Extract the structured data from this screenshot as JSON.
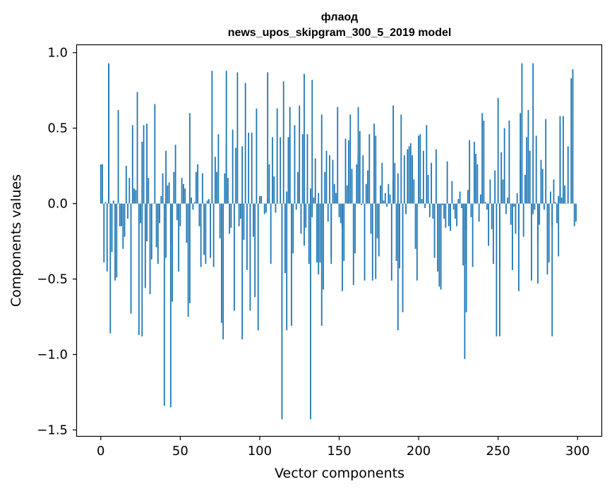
{
  "chart_data": {
    "type": "bar",
    "title": "флаод",
    "subtitle": "news_upos_skipgram_300_5_2019 model",
    "xlabel": "Vector components",
    "ylabel": "Components values",
    "xlim": [
      -15,
      315
    ],
    "ylim": [
      -1.54,
      1.05
    ],
    "xticks": [
      0,
      50,
      100,
      150,
      200,
      250,
      300
    ],
    "xtick_labels": [
      "0",
      "50",
      "100",
      "150",
      "200",
      "250",
      "300"
    ],
    "yticks": [
      -1.5,
      -1.0,
      -0.5,
      0.0,
      0.5,
      1.0
    ],
    "ytick_labels": [
      "−1.5",
      "−1.0",
      "−0.5",
      "0.0",
      "0.5",
      "1.0"
    ],
    "bar_color": "#1f77b4",
    "grid": false,
    "values": [
      0.26,
      0.26,
      -0.39,
      0.01,
      -0.45,
      0.92,
      -0.86,
      -0.32,
      0.02,
      -0.51,
      -0.49,
      0.62,
      -0.15,
      -0.15,
      -0.3,
      -0.22,
      0.25,
      -0.1,
      0.17,
      -0.73,
      0.52,
      0.1,
      0.09,
      0.74,
      -0.87,
      -0.13,
      0.41,
      0.52,
      -0.56,
      -0.25,
      0.17,
      -0.6,
      -0.37,
      0.0,
      0.66,
      -0.29,
      -0.4,
      -0.13,
      0.05,
      0.2,
      -1.34,
      0.35,
      0.12,
      0.14,
      -0.26,
      -0.65,
      0.21,
      0.39,
      -0.11,
      -0.45,
      -0.15,
      0.17,
      0.13,
      0.1,
      -0.26,
      -0.75,
      0.6,
      0.04,
      -0.04,
      0.01,
      0.21,
      0.26,
      -0.15,
      -0.42,
      0.2,
      -0.34,
      -0.4,
      0.02,
      0.03,
      -0.36,
      0.88,
      -0.42,
      0.31,
      0.21,
      0.46,
      -0.23,
      -0.79,
      -0.9,
      0.2,
      0.39,
      0.17,
      -0.2,
      -0.16,
      0.49,
      -0.71,
      0.37,
      0.87,
      -0.15,
      -0.1,
      0.38,
      -0.24,
      0.8,
      -0.44,
      0.47,
      -0.71,
      0.47,
      -0.22,
      -0.62,
      0.63,
      -0.84,
      0.05,
      0.05,
      0.0,
      -0.07,
      -0.06,
      0.03,
      0.26,
      -0.4,
      0.44,
      0.18,
      -0.06,
      0.63,
      0.0,
      0.44,
      -1.43,
      0.81,
      -0.46,
      0.08,
      0.44,
      0.46,
      -0.81,
      -0.33,
      0.52,
      -0.04,
      0.21,
      0.65,
      -0.2,
      0.46,
      -0.28,
      -0.16,
      0.46,
      -0.4,
      0.1,
      -0.09,
      0.04,
      0.3,
      -0.39,
      0.07,
      -0.39,
      0.59,
      -0.57,
      0.21,
      0.35,
      -0.12,
      0.32,
      -0.35,
      0.29,
      0.13,
      0.07,
      0.64,
      -0.09,
      -0.13,
      -0.16,
      -0.38,
      0.43,
      0.12,
      0.42,
      0.59,
      0.23,
      -0.54,
      -0.33,
      0.26,
      0.32,
      0.48,
      -0.01,
      0.32,
      -0.51,
      0.13,
      0.22,
      0.46,
      -0.2,
      -0.51,
      0.53,
      0.45,
      -0.23,
      -0.35,
      0.12,
      0.27,
      0.02,
      0.07,
      -0.02,
      0.13,
      0.06,
      -0.51,
      0.16,
      0.27,
      -0.38,
      0.2,
      -0.43,
      0.59,
      -0.72,
      0.32,
      -0.07,
      0.36,
      0.38,
      0.4,
      0.32,
      0.16,
      -0.3,
      -0.51,
      0.45,
      0.46,
      0.03,
      0.35,
      -0.03,
      0.52,
      0.19,
      -0.09,
      0.27,
      -0.1,
      -0.36,
      0.36,
      -0.45,
      -0.55,
      -0.57,
      -0.01,
      -0.1,
      -0.16,
      0.28,
      -0.15,
      -0.18,
      0.15,
      -0.04,
      -0.1,
      -0.15,
      0.03,
      0.08,
      -0.03,
      -0.41,
      -0.4,
      -0.18,
      0.09,
      0.42,
      -0.09,
      -0.42,
      0.41,
      0.33,
      0.26,
      -0.12,
      0.06,
      0.6,
      0.55,
      0.01,
      -0.04,
      -0.28,
      0.16,
      -0.17,
      -0.4,
      0.22,
      -0.88,
      0.7,
      -0.43,
      0.34,
      0.16,
      0.5,
      -0.07,
      0.04,
      0.55,
      -0.14,
      -0.44,
      -0.02,
      -0.2,
      0.07,
      -0.17,
      0.29,
      0.02,
      -0.22,
      0.19,
      0.44,
      0.62,
      0.35,
      -0.51,
      -0.07,
      -0.04,
      0.45,
      -0.25,
      -0.14,
      0.29,
      0.23,
      -0.04,
      0.56,
      -0.47,
      -0.39,
      0.08,
      -0.15,
      0.16,
      0.01,
      -0.13,
      0.05,
      0.52,
      0.04,
      0.58,
      0.12,
      0.0,
      0.38
    ],
    "extra_spikes": [
      {
        "x": 5,
        "y": 0.93
      },
      {
        "x": 26,
        "y": -0.88
      },
      {
        "x": 29,
        "y": 0.53
      },
      {
        "x": 41,
        "y": -0.36
      },
      {
        "x": 44,
        "y": -1.35
      },
      {
        "x": 56,
        "y": -0.66
      },
      {
        "x": 79,
        "y": 0.88
      },
      {
        "x": 89,
        "y": -0.9
      },
      {
        "x": 105,
        "y": 0.87
      },
      {
        "x": 117,
        "y": -0.84
      },
      {
        "x": 119,
        "y": 0.64
      },
      {
        "x": 128,
        "y": 0.86
      },
      {
        "x": 132,
        "y": -1.43
      },
      {
        "x": 133,
        "y": 0.82
      },
      {
        "x": 137,
        "y": -0.47
      },
      {
        "x": 139,
        "y": -0.81
      },
      {
        "x": 145,
        "y": -0.4
      },
      {
        "x": 152,
        "y": -0.58
      },
      {
        "x": 162,
        "y": 0.64
      },
      {
        "x": 173,
        "y": -0.5
      },
      {
        "x": 184,
        "y": 0.65
      },
      {
        "x": 187,
        "y": -0.84
      },
      {
        "x": 229,
        "y": -1.03
      },
      {
        "x": 230,
        "y": -0.72
      },
      {
        "x": 251,
        "y": -0.88
      },
      {
        "x": 263,
        "y": -0.58
      },
      {
        "x": 264,
        "y": 0.6
      },
      {
        "x": 265,
        "y": 0.93
      },
      {
        "x": 272,
        "y": 0.93
      },
      {
        "x": 275,
        "y": -0.53
      },
      {
        "x": 284,
        "y": -0.88
      },
      {
        "x": 288,
        "y": -0.35
      },
      {
        "x": 289,
        "y": 0.58
      },
      {
        "x": 296,
        "y": 0.83
      },
      {
        "x": 297,
        "y": 0.89
      },
      {
        "x": 298,
        "y": -0.15
      },
      {
        "x": 299,
        "y": -0.12
      }
    ]
  }
}
